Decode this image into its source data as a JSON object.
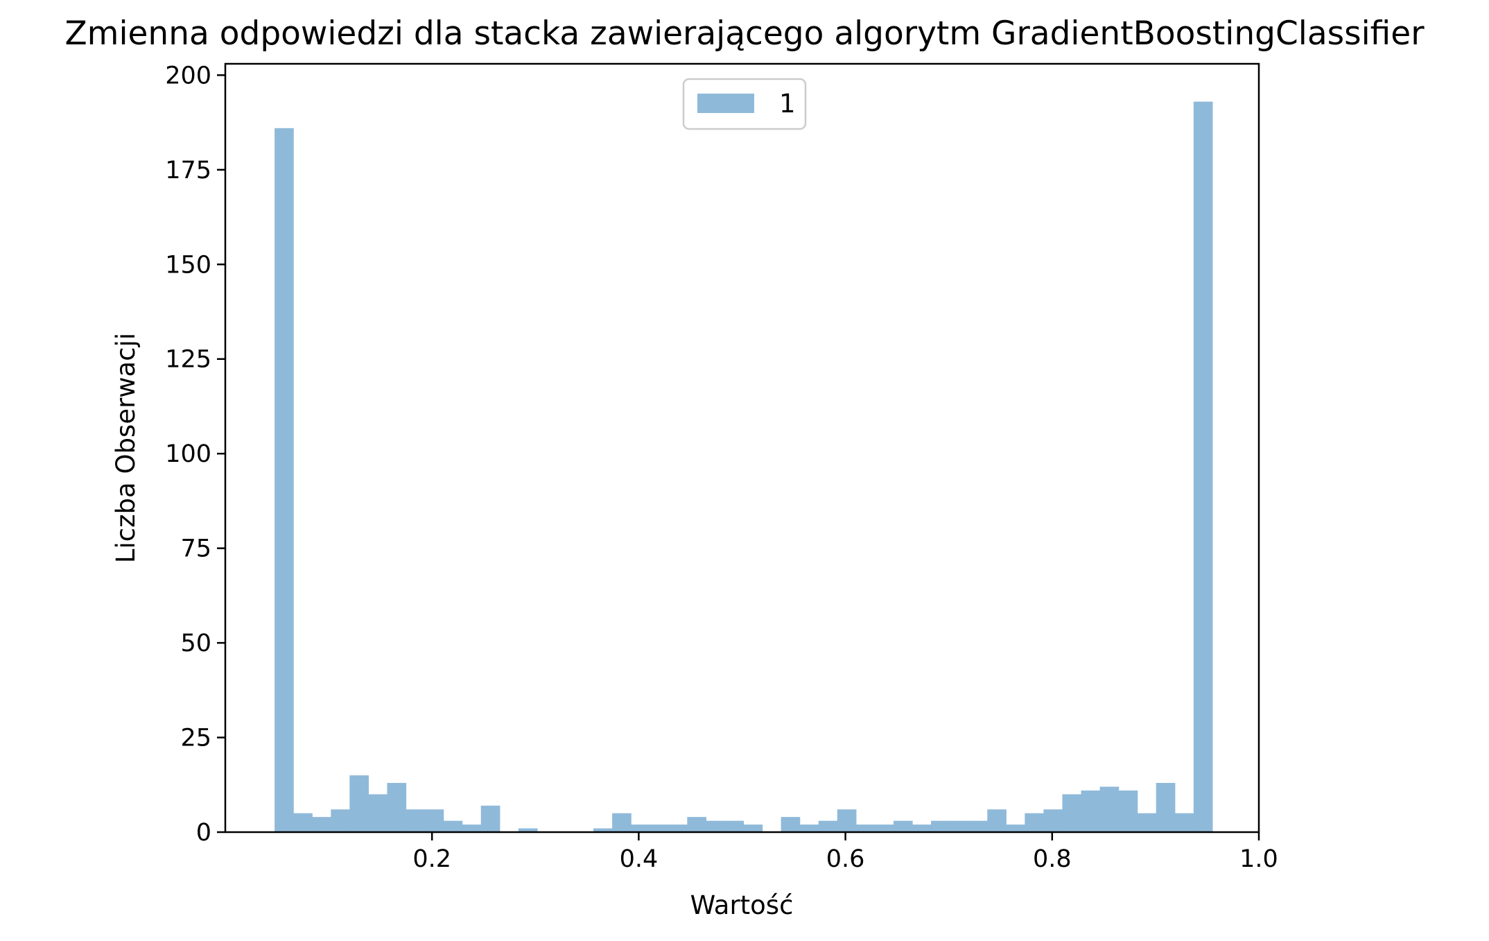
{
  "chart_data": {
    "type": "bar",
    "subtype": "histogram",
    "title": "Zmienna odpowiedzi dla stacka zawierającego algorytm GradientBoostingClassifier",
    "xlabel": "Wartość",
    "ylabel": "Liczba Obserwacji",
    "xlim": [
      0.0,
      1.0
    ],
    "ylim": [
      0,
      203
    ],
    "x_ticks": [
      0.2,
      0.4,
      0.6,
      0.8,
      1.0
    ],
    "x_tick_labels": [
      "0.2",
      "0.4",
      "0.6",
      "0.8",
      "1.0"
    ],
    "y_ticks": [
      0,
      25,
      50,
      75,
      100,
      125,
      150,
      175,
      200
    ],
    "y_tick_labels": [
      "0",
      "25",
      "50",
      "75",
      "100",
      "125",
      "150",
      "175",
      "200"
    ],
    "grid": false,
    "legend_position": "top-center",
    "bin_range": [
      0.0477,
      0.955
    ],
    "series": [
      {
        "name": "1",
        "color": "#8fb9d9",
        "values": [
          186,
          5,
          4,
          6,
          15,
          10,
          13,
          6,
          6,
          3,
          2,
          7,
          0,
          1,
          0,
          0,
          0,
          1,
          5,
          2,
          2,
          2,
          4,
          3,
          3,
          2,
          0,
          4,
          2,
          3,
          6,
          2,
          2,
          3,
          2,
          3,
          3,
          3,
          6,
          2,
          5,
          6,
          10,
          11,
          12,
          11,
          5,
          13,
          5,
          193
        ]
      }
    ]
  }
}
